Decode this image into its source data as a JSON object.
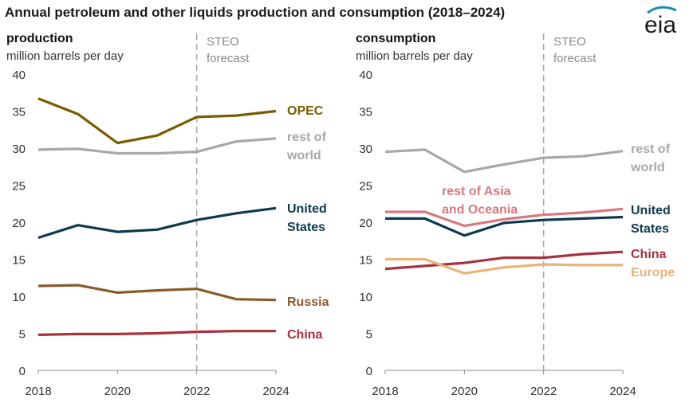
{
  "title": "Annual petroleum and other liquids production and consumption (2018–2024)",
  "logo_text": "eia",
  "forecast_label": [
    "STEO",
    "forecast"
  ],
  "chart_data": [
    {
      "type": "line",
      "panel_title": "production",
      "unit_label": "million barrels per day",
      "x": [
        2018,
        2019,
        2020,
        2021,
        2022,
        2023,
        2024
      ],
      "xticks": [
        "2018",
        "2020",
        "2022",
        "2024"
      ],
      "ylim": [
        0,
        40
      ],
      "yticks": [
        "0",
        "5",
        "10",
        "15",
        "20",
        "25",
        "30",
        "35",
        "40"
      ],
      "forecast_start": 2022,
      "grid": false,
      "series": [
        {
          "name": "OPEC",
          "label_lines": [
            "OPEC"
          ],
          "color": "#7a5c00",
          "values": [
            36.7,
            34.6,
            30.7,
            31.7,
            34.2,
            34.4,
            35.0
          ]
        },
        {
          "name": "rest of world",
          "label_lines": [
            "rest of",
            "world"
          ],
          "color": "#a8a8a8",
          "values": [
            29.8,
            29.9,
            29.3,
            29.3,
            29.5,
            30.9,
            31.3
          ]
        },
        {
          "name": "United States",
          "label_lines": [
            "United",
            "States"
          ],
          "color": "#0d3a4f",
          "values": [
            17.9,
            19.6,
            18.7,
            19.0,
            20.3,
            21.2,
            21.9
          ]
        },
        {
          "name": "Russia",
          "label_lines": [
            "Russia"
          ],
          "color": "#8b5a2b",
          "values": [
            11.4,
            11.5,
            10.5,
            10.8,
            11.0,
            9.6,
            9.5
          ]
        },
        {
          "name": "China",
          "label_lines": [
            "China"
          ],
          "color": "#a8323e",
          "values": [
            4.8,
            4.9,
            4.9,
            5.0,
            5.2,
            5.3,
            5.3
          ]
        }
      ]
    },
    {
      "type": "line",
      "panel_title": "consumption",
      "unit_label": "million barrels per day",
      "x": [
        2018,
        2019,
        2020,
        2021,
        2022,
        2023,
        2024
      ],
      "xticks": [
        "2018",
        "2020",
        "2022",
        "2024"
      ],
      "ylim": [
        0,
        40
      ],
      "yticks": [
        "0",
        "5",
        "10",
        "15",
        "20",
        "25",
        "30",
        "35",
        "40"
      ],
      "forecast_start": 2022,
      "grid": false,
      "series": [
        {
          "name": "rest of world",
          "label_lines": [
            "rest of",
            "world"
          ],
          "color": "#a8a8a8",
          "values": [
            29.5,
            29.8,
            26.8,
            27.8,
            28.7,
            28.9,
            29.6
          ]
        },
        {
          "name": "rest of Asia and Oceania",
          "label_lines": [
            "rest of Asia",
            "and Oceania"
          ],
          "color": "#d9777f",
          "values": [
            21.4,
            21.4,
            19.5,
            20.4,
            21.0,
            21.3,
            21.8
          ]
        },
        {
          "name": "United States",
          "label_lines": [
            "United",
            "States"
          ],
          "color": "#0d3a4f",
          "values": [
            20.5,
            20.5,
            18.2,
            19.9,
            20.3,
            20.5,
            20.7
          ]
        },
        {
          "name": "China",
          "label_lines": [
            "China"
          ],
          "color": "#a8323e",
          "values": [
            13.7,
            14.1,
            14.5,
            15.2,
            15.2,
            15.7,
            16.0
          ]
        },
        {
          "name": "Europe",
          "label_lines": [
            "Europe"
          ],
          "color": "#e8b47a",
          "values": [
            15.0,
            15.0,
            13.1,
            13.9,
            14.3,
            14.2,
            14.2
          ]
        }
      ]
    }
  ]
}
